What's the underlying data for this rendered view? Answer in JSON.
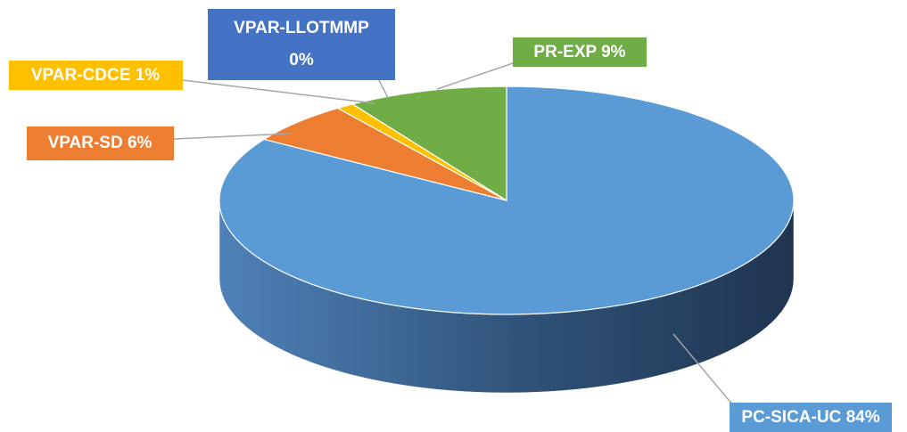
{
  "chart_data": {
    "type": "pie3d",
    "categories": [
      "PC-SICA-UC",
      "VPAR-SD",
      "VPAR-CDCE",
      "VPAR-LLOTMMP",
      "PR-EXP"
    ],
    "values": [
      84,
      6,
      1,
      0,
      9
    ],
    "value_labels": [
      "84%",
      "6%",
      "1%",
      "0%",
      "9%"
    ],
    "colors": [
      "#5b9bd5",
      "#ed7d31",
      "#ffc000",
      "#4472c4",
      "#70ad47"
    ]
  }
}
